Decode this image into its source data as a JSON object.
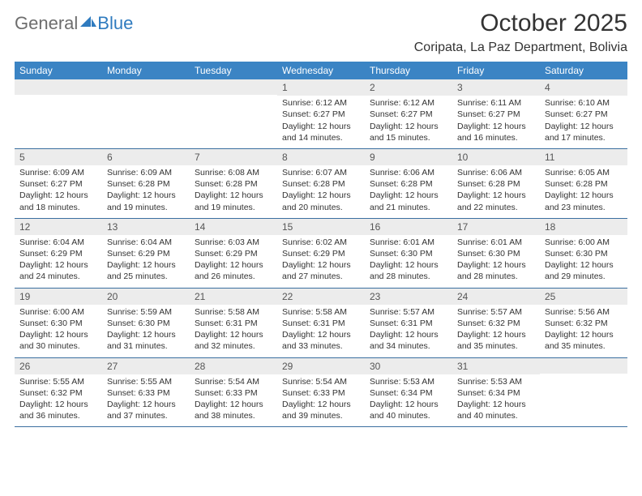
{
  "brand": {
    "word1": "General",
    "word2": "Blue",
    "color_general": "#6d6d6d",
    "color_blue": "#2f7bbf"
  },
  "header": {
    "title": "October 2025",
    "location": "Coripata, La Paz Department, Bolivia",
    "title_color": "#333333",
    "title_fontsize": 30,
    "location_fontsize": 16
  },
  "calendar": {
    "header_bg": "#3b84c4",
    "header_text_color": "#ffffff",
    "header_fontsize": 12,
    "daynum_bg": "#ececec",
    "daynum_color": "#555555",
    "cell_fontsize": 10.5,
    "cell_text_color": "#333333",
    "row_border_color": "#3b6fa0",
    "background": "#ffffff",
    "day_names": [
      "Sunday",
      "Monday",
      "Tuesday",
      "Wednesday",
      "Thursday",
      "Friday",
      "Saturday"
    ],
    "weeks": [
      [
        {
          "n": "",
          "sunrise": "",
          "sunset": "",
          "daylight": ""
        },
        {
          "n": "",
          "sunrise": "",
          "sunset": "",
          "daylight": ""
        },
        {
          "n": "",
          "sunrise": "",
          "sunset": "",
          "daylight": ""
        },
        {
          "n": "1",
          "sunrise": "Sunrise: 6:12 AM",
          "sunset": "Sunset: 6:27 PM",
          "daylight": "Daylight: 12 hours and 14 minutes."
        },
        {
          "n": "2",
          "sunrise": "Sunrise: 6:12 AM",
          "sunset": "Sunset: 6:27 PM",
          "daylight": "Daylight: 12 hours and 15 minutes."
        },
        {
          "n": "3",
          "sunrise": "Sunrise: 6:11 AM",
          "sunset": "Sunset: 6:27 PM",
          "daylight": "Daylight: 12 hours and 16 minutes."
        },
        {
          "n": "4",
          "sunrise": "Sunrise: 6:10 AM",
          "sunset": "Sunset: 6:27 PM",
          "daylight": "Daylight: 12 hours and 17 minutes."
        }
      ],
      [
        {
          "n": "5",
          "sunrise": "Sunrise: 6:09 AM",
          "sunset": "Sunset: 6:27 PM",
          "daylight": "Daylight: 12 hours and 18 minutes."
        },
        {
          "n": "6",
          "sunrise": "Sunrise: 6:09 AM",
          "sunset": "Sunset: 6:28 PM",
          "daylight": "Daylight: 12 hours and 19 minutes."
        },
        {
          "n": "7",
          "sunrise": "Sunrise: 6:08 AM",
          "sunset": "Sunset: 6:28 PM",
          "daylight": "Daylight: 12 hours and 19 minutes."
        },
        {
          "n": "8",
          "sunrise": "Sunrise: 6:07 AM",
          "sunset": "Sunset: 6:28 PM",
          "daylight": "Daylight: 12 hours and 20 minutes."
        },
        {
          "n": "9",
          "sunrise": "Sunrise: 6:06 AM",
          "sunset": "Sunset: 6:28 PM",
          "daylight": "Daylight: 12 hours and 21 minutes."
        },
        {
          "n": "10",
          "sunrise": "Sunrise: 6:06 AM",
          "sunset": "Sunset: 6:28 PM",
          "daylight": "Daylight: 12 hours and 22 minutes."
        },
        {
          "n": "11",
          "sunrise": "Sunrise: 6:05 AM",
          "sunset": "Sunset: 6:28 PM",
          "daylight": "Daylight: 12 hours and 23 minutes."
        }
      ],
      [
        {
          "n": "12",
          "sunrise": "Sunrise: 6:04 AM",
          "sunset": "Sunset: 6:29 PM",
          "daylight": "Daylight: 12 hours and 24 minutes."
        },
        {
          "n": "13",
          "sunrise": "Sunrise: 6:04 AM",
          "sunset": "Sunset: 6:29 PM",
          "daylight": "Daylight: 12 hours and 25 minutes."
        },
        {
          "n": "14",
          "sunrise": "Sunrise: 6:03 AM",
          "sunset": "Sunset: 6:29 PM",
          "daylight": "Daylight: 12 hours and 26 minutes."
        },
        {
          "n": "15",
          "sunrise": "Sunrise: 6:02 AM",
          "sunset": "Sunset: 6:29 PM",
          "daylight": "Daylight: 12 hours and 27 minutes."
        },
        {
          "n": "16",
          "sunrise": "Sunrise: 6:01 AM",
          "sunset": "Sunset: 6:30 PM",
          "daylight": "Daylight: 12 hours and 28 minutes."
        },
        {
          "n": "17",
          "sunrise": "Sunrise: 6:01 AM",
          "sunset": "Sunset: 6:30 PM",
          "daylight": "Daylight: 12 hours and 28 minutes."
        },
        {
          "n": "18",
          "sunrise": "Sunrise: 6:00 AM",
          "sunset": "Sunset: 6:30 PM",
          "daylight": "Daylight: 12 hours and 29 minutes."
        }
      ],
      [
        {
          "n": "19",
          "sunrise": "Sunrise: 6:00 AM",
          "sunset": "Sunset: 6:30 PM",
          "daylight": "Daylight: 12 hours and 30 minutes."
        },
        {
          "n": "20",
          "sunrise": "Sunrise: 5:59 AM",
          "sunset": "Sunset: 6:30 PM",
          "daylight": "Daylight: 12 hours and 31 minutes."
        },
        {
          "n": "21",
          "sunrise": "Sunrise: 5:58 AM",
          "sunset": "Sunset: 6:31 PM",
          "daylight": "Daylight: 12 hours and 32 minutes."
        },
        {
          "n": "22",
          "sunrise": "Sunrise: 5:58 AM",
          "sunset": "Sunset: 6:31 PM",
          "daylight": "Daylight: 12 hours and 33 minutes."
        },
        {
          "n": "23",
          "sunrise": "Sunrise: 5:57 AM",
          "sunset": "Sunset: 6:31 PM",
          "daylight": "Daylight: 12 hours and 34 minutes."
        },
        {
          "n": "24",
          "sunrise": "Sunrise: 5:57 AM",
          "sunset": "Sunset: 6:32 PM",
          "daylight": "Daylight: 12 hours and 35 minutes."
        },
        {
          "n": "25",
          "sunrise": "Sunrise: 5:56 AM",
          "sunset": "Sunset: 6:32 PM",
          "daylight": "Daylight: 12 hours and 35 minutes."
        }
      ],
      [
        {
          "n": "26",
          "sunrise": "Sunrise: 5:55 AM",
          "sunset": "Sunset: 6:32 PM",
          "daylight": "Daylight: 12 hours and 36 minutes."
        },
        {
          "n": "27",
          "sunrise": "Sunrise: 5:55 AM",
          "sunset": "Sunset: 6:33 PM",
          "daylight": "Daylight: 12 hours and 37 minutes."
        },
        {
          "n": "28",
          "sunrise": "Sunrise: 5:54 AM",
          "sunset": "Sunset: 6:33 PM",
          "daylight": "Daylight: 12 hours and 38 minutes."
        },
        {
          "n": "29",
          "sunrise": "Sunrise: 5:54 AM",
          "sunset": "Sunset: 6:33 PM",
          "daylight": "Daylight: 12 hours and 39 minutes."
        },
        {
          "n": "30",
          "sunrise": "Sunrise: 5:53 AM",
          "sunset": "Sunset: 6:34 PM",
          "daylight": "Daylight: 12 hours and 40 minutes."
        },
        {
          "n": "31",
          "sunrise": "Sunrise: 5:53 AM",
          "sunset": "Sunset: 6:34 PM",
          "daylight": "Daylight: 12 hours and 40 minutes."
        },
        {
          "n": "",
          "sunrise": "",
          "sunset": "",
          "daylight": ""
        }
      ]
    ]
  }
}
